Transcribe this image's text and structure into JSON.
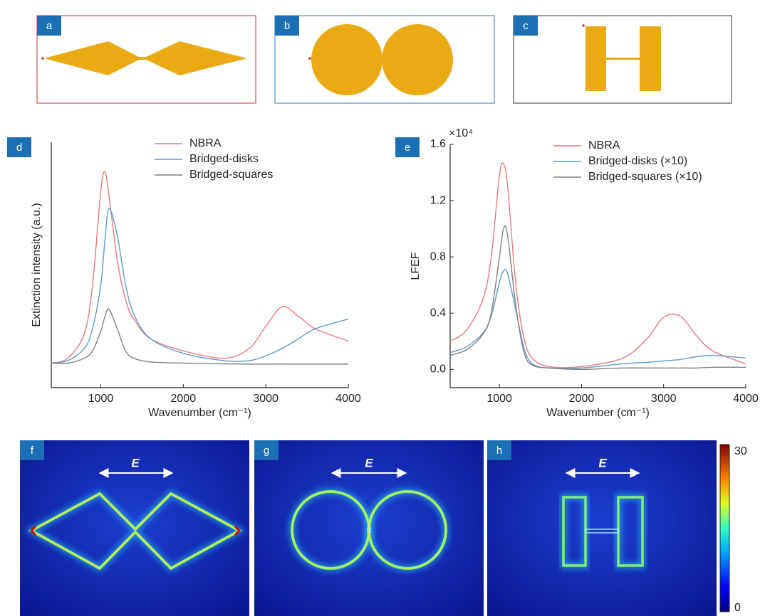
{
  "panels": {
    "labels": [
      "a",
      "b",
      "c",
      "d",
      "e",
      "f",
      "g",
      "h"
    ]
  },
  "field_maps": {
    "arrow_label": "E",
    "colorbar_ticks": [
      30,
      0
    ]
  },
  "chart_data": [
    {
      "type": "line",
      "ylabel": "Extinction intensity (a.u.)",
      "xlabel": "Wavenumber (cm⁻¹)",
      "xlim": [
        400,
        4000
      ],
      "xticks": [
        1000,
        2000,
        3000,
        4000
      ],
      "ylim": [
        0,
        1
      ],
      "x": [
        400,
        600,
        800,
        900,
        1000,
        1050,
        1100,
        1200,
        1300,
        1400,
        1600,
        2000,
        2500,
        2800,
        3000,
        3200,
        3400,
        3600,
        4000
      ],
      "series": [
        {
          "name": "NBRA",
          "color": "#e8787c",
          "values": [
            0.1,
            0.12,
            0.22,
            0.42,
            0.8,
            0.88,
            0.78,
            0.52,
            0.36,
            0.28,
            0.2,
            0.15,
            0.12,
            0.16,
            0.25,
            0.33,
            0.29,
            0.24,
            0.19
          ]
        },
        {
          "name": "Bridged-disks",
          "color": "#5b9bd0",
          "values": [
            0.1,
            0.11,
            0.16,
            0.24,
            0.42,
            0.6,
            0.73,
            0.62,
            0.42,
            0.3,
            0.2,
            0.14,
            0.11,
            0.11,
            0.13,
            0.16,
            0.2,
            0.24,
            0.28
          ]
        },
        {
          "name": "Bridged-squares",
          "color": "#808080",
          "values": [
            0.1,
            0.1,
            0.12,
            0.15,
            0.23,
            0.29,
            0.32,
            0.24,
            0.15,
            0.12,
            0.105,
            0.1,
            0.097,
            0.096,
            0.096,
            0.096,
            0.096,
            0.096,
            0.096
          ]
        }
      ]
    },
    {
      "type": "line",
      "ylabel": "LFEF",
      "xlabel": "Wavenumber (cm⁻¹)",
      "y_multiplier": "×10⁴",
      "xlim": [
        400,
        4000
      ],
      "xticks": [
        1000,
        2000,
        3000,
        4000
      ],
      "ylim": [
        -0.13,
        1.6
      ],
      "yticks": [
        {
          "value": 0,
          "label": "0.0"
        },
        0.4,
        0.8,
        1.2,
        1.6
      ],
      "x": [
        400,
        600,
        800,
        900,
        1000,
        1050,
        1100,
        1200,
        1300,
        1400,
        1600,
        2000,
        2500,
        2800,
        3000,
        3200,
        3400,
        3600,
        4000
      ],
      "series": [
        {
          "name": "NBRA",
          "color": "#e8787c",
          "values": [
            0.2,
            0.28,
            0.5,
            0.8,
            1.38,
            1.46,
            1.3,
            0.6,
            0.22,
            0.08,
            0.02,
            0.02,
            0.08,
            0.22,
            0.37,
            0.38,
            0.24,
            0.13,
            0.04
          ]
        },
        {
          "name": "Bridged-disks (×10)",
          "color": "#5b9bd0",
          "values": [
            0.12,
            0.16,
            0.26,
            0.38,
            0.62,
            0.7,
            0.68,
            0.42,
            0.15,
            0.04,
            0.01,
            0.01,
            0.04,
            0.05,
            0.06,
            0.07,
            0.09,
            0.1,
            0.08
          ]
        },
        {
          "name": "Bridged-squares (×10)",
          "color": "#808080",
          "values": [
            0.1,
            0.14,
            0.25,
            0.4,
            0.8,
            1.0,
            0.95,
            0.45,
            0.12,
            0.03,
            0.01,
            0.0,
            0.01,
            0.01,
            0.01,
            0.01,
            0.01,
            0.015,
            0.015
          ]
        }
      ]
    }
  ]
}
